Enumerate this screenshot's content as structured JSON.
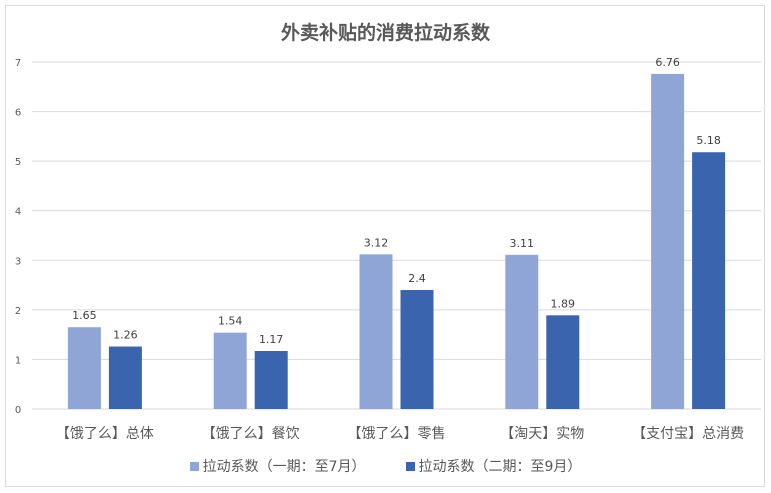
{
  "chart_data": {
    "type": "bar",
    "title": "外卖补贴的消费拉动系数",
    "categories": [
      "【饿了么】总体",
      "【饿了么】餐饮",
      "【饿了么】零售",
      "【淘天】实物",
      "【支付宝】总消费"
    ],
    "series": [
      {
        "name": "拉动系数（一期：至7月）",
        "values": [
          1.65,
          1.54,
          3.12,
          3.11,
          6.76
        ],
        "labels": [
          "1.65",
          "1.54",
          "3.12",
          "3.11",
          "6.76"
        ],
        "color": "#8FA5D6"
      },
      {
        "name": "拉动系数（二期：至9月）",
        "values": [
          1.26,
          1.17,
          2.4,
          1.89,
          5.18
        ],
        "labels": [
          "1.26",
          "1.17",
          "2.4",
          "1.89",
          "5.18"
        ],
        "color": "#3A64AE"
      }
    ],
    "yticks": [
      "0",
      "1",
      "2",
      "3",
      "4",
      "5",
      "6",
      "7"
    ],
    "ylim": [
      0,
      7
    ],
    "grid": true,
    "legend": "bottom",
    "xlabel": "",
    "ylabel": ""
  }
}
